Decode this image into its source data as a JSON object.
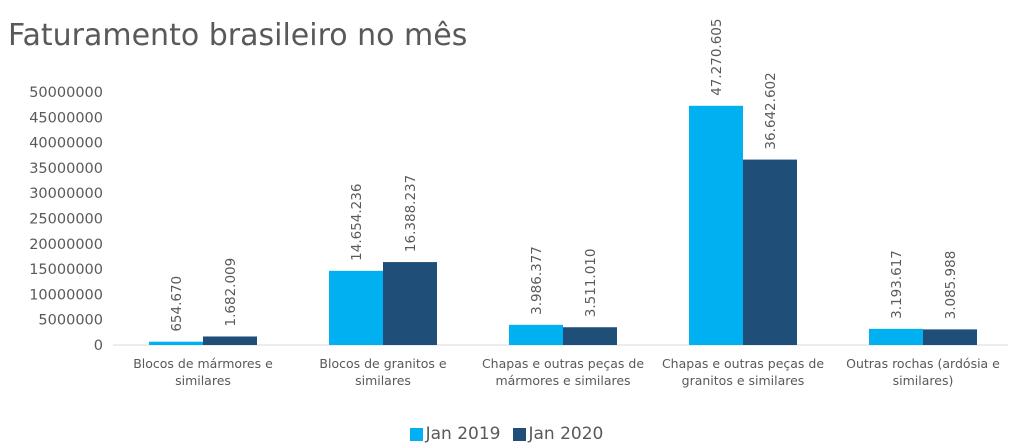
{
  "chart_data": {
    "type": "bar",
    "title": "Faturamento brasileiro no mês",
    "categories": [
      "Blocos de mármores e similares",
      "Blocos de granitos e similares",
      "Chapas e outras peças de mármores e similares",
      "Chapas e outras peças de granitos e similares",
      "Outras rochas (ardósia e similares)"
    ],
    "series": [
      {
        "name": "Jan 2019",
        "color": "#00b0f0",
        "values": [
          654670,
          14654236,
          3986377,
          47270605,
          3193617
        ],
        "value_labels": [
          "654.670",
          "14.654.236",
          "3.986.377",
          "47.270.605",
          "3.193.617"
        ]
      },
      {
        "name": "Jan 2020",
        "color": "#1f4e79",
        "values": [
          1682009,
          16388237,
          3511010,
          36642602,
          3085988
        ],
        "value_labels": [
          "1.682.009",
          "16.388.237",
          "3.511.010",
          "36.642.602",
          "3.085.988"
        ]
      }
    ],
    "ylim": [
      0,
      50000000
    ],
    "yticks": [
      0,
      5000000,
      10000000,
      15000000,
      20000000,
      25000000,
      30000000,
      35000000,
      40000000,
      45000000,
      50000000
    ],
    "grid": false,
    "legend": "bottom"
  }
}
